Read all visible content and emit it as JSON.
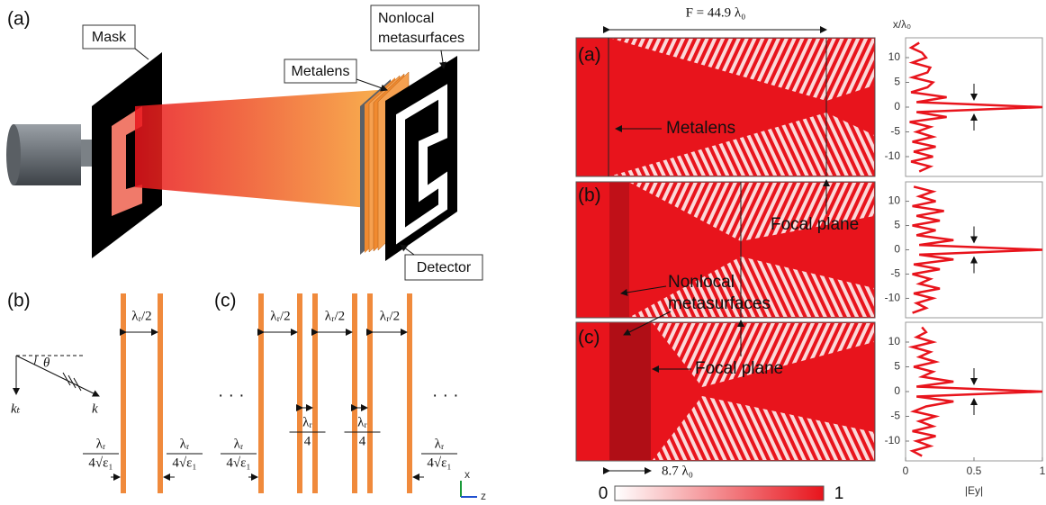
{
  "figure": {
    "schematic": {
      "panel_label": "(a)",
      "mask": "Mask",
      "nonlocal": [
        "Nonlocal",
        "metasurfaces"
      ],
      "metalens": "Metalens",
      "detector": "Detector"
    },
    "panel_b": {
      "label": "(b)",
      "theta": "θ",
      "k_t": "kₜ",
      "k": "k",
      "halves": [
        "λᵣ/2"
      ],
      "edges": [
        {
          "num": "λᵣ",
          "den": "4√ε₁"
        },
        {
          "num": "λᵣ",
          "den": "4√ε₁"
        }
      ]
    },
    "panel_c": {
      "label": "(c)",
      "dots": [
        "· · ·",
        "· · ·"
      ],
      "halves": [
        "λᵣ/2",
        "λᵣ/2",
        "λᵣ/2"
      ],
      "quarters": [
        {
          "num": "λᵣ",
          "den": "4"
        },
        {
          "num": "λᵣ",
          "den": "4"
        }
      ],
      "edges": [
        {
          "num": "λᵣ",
          "den": "4√ε₁"
        },
        {
          "num": "λᵣ",
          "den": "4√ε₁"
        }
      ]
    },
    "axes_icon": {
      "x": "x",
      "z": "z"
    },
    "field": {
      "focal_length": "F = 44.9 λ₀",
      "labels": [
        "(a)",
        "(b)",
        "(c)"
      ],
      "metalens": "Metalens",
      "focal_plane_1": "Focal plane",
      "nonlocal": [
        "Nonlocal",
        "metasurfaces"
      ],
      "focal_plane_2": "Focal plane",
      "stack_width": "8.7 λ₀",
      "colorbar_ticks": [
        0,
        1
      ]
    }
  },
  "chart_data": [
    {
      "type": "line",
      "xlabel": "x/λ₀",
      "color": "#e8141c",
      "xlim": [
        -14,
        14
      ],
      "xticks": [
        -10,
        -5,
        0,
        5,
        10
      ],
      "ylim": [
        0,
        1
      ],
      "x": [
        -13,
        -12,
        -11,
        -10,
        -9,
        -8,
        -7,
        -6,
        -5,
        -4,
        -3,
        -2,
        -1,
        0,
        1,
        2,
        3,
        4,
        5,
        6,
        7,
        8,
        9,
        10,
        11,
        12,
        13
      ],
      "values": [
        0.1,
        0.18,
        0.04,
        0.2,
        0.06,
        0.22,
        0.05,
        0.2,
        0.08,
        0.18,
        0.03,
        0.3,
        0.08,
        1.0,
        0.08,
        0.3,
        0.04,
        0.16,
        0.2,
        0.05,
        0.16,
        0.18,
        0.05,
        0.15,
        0.12,
        0.04,
        0.1
      ]
    },
    {
      "type": "line",
      "color": "#e8141c",
      "xlim": [
        -14,
        14
      ],
      "xticks": [
        -10,
        -5,
        0,
        5,
        10
      ],
      "ylim": [
        0,
        1
      ],
      "x": [
        -13,
        -12,
        -11,
        -10,
        -9,
        -8,
        -7,
        -6,
        -5,
        -4,
        -3,
        -2,
        -1,
        0,
        1,
        2,
        3,
        4,
        5,
        6,
        7,
        8,
        9,
        10,
        11,
        12,
        13
      ],
      "values": [
        0.05,
        0.15,
        0.08,
        0.2,
        0.06,
        0.25,
        0.1,
        0.18,
        0.05,
        0.25,
        0.06,
        0.35,
        0.1,
        1.0,
        0.1,
        0.35,
        0.08,
        0.22,
        0.05,
        0.25,
        0.08,
        0.28,
        0.05,
        0.22,
        0.1,
        0.2,
        0.06
      ]
    },
    {
      "type": "line",
      "ylabel": "|Ey|",
      "color": "#e8141c",
      "xlim": [
        -14,
        14
      ],
      "xticks": [
        -10,
        -5,
        0,
        5,
        10
      ],
      "ylim": [
        0,
        1
      ],
      "yticks": [
        0,
        0.5,
        1
      ],
      "x": [
        -13,
        -12,
        -11,
        -10,
        -9,
        -8,
        -7,
        -6,
        -5,
        -4,
        -3,
        -2,
        -1,
        0,
        1,
        2,
        3,
        4,
        5,
        6,
        7,
        8,
        9,
        10,
        11,
        12,
        13
      ],
      "values": [
        0.12,
        0.05,
        0.18,
        0.08,
        0.22,
        0.05,
        0.2,
        0.1,
        0.22,
        0.06,
        0.15,
        0.35,
        0.08,
        1.0,
        0.08,
        0.35,
        0.12,
        0.2,
        0.06,
        0.22,
        0.1,
        0.18,
        0.05,
        0.2,
        0.08,
        0.15,
        0.12
      ]
    }
  ]
}
